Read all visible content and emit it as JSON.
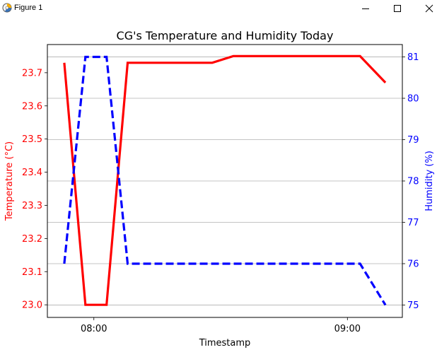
{
  "window": {
    "title": "Figure 1",
    "controls": {
      "minimize_icon": "minimize-icon",
      "maximize_icon": "maximize-icon",
      "close_icon": "close-icon"
    },
    "app_icon": "matplotlib-figure-icon"
  },
  "chart_data": {
    "type": "line",
    "title": "CG's Temperature and Humidity Today",
    "xlabel": "Timestamp",
    "x_ticks": [
      "08:00",
      "09:00"
    ],
    "x_tick_values": [
      "07:58",
      "08:58"
    ],
    "x": [
      "07:51",
      "07:56",
      "08:01",
      "08:06",
      "08:26",
      "08:31",
      "08:56",
      "09:01",
      "09:07"
    ],
    "xlim": [
      "07:47",
      "09:11"
    ],
    "grid": "y",
    "series": [
      {
        "name": "Temperature (°C)",
        "axis": "left",
        "color": "#ff0000",
        "line_style": "solid",
        "values": [
          23.73,
          23.0,
          23.0,
          23.73,
          23.73,
          23.75,
          23.75,
          23.75,
          23.67
        ]
      },
      {
        "name": "Humidity (%)",
        "axis": "right",
        "color": "#0000ff",
        "line_style": "dashed",
        "values": [
          76,
          81,
          81,
          76,
          76,
          76,
          76,
          76,
          75
        ]
      }
    ],
    "y_left": {
      "label": "Temperature (°C)",
      "color": "#ff0000",
      "ylim": [
        22.962,
        23.785
      ],
      "ticks": [
        "23.0",
        "23.1",
        "23.2",
        "23.3",
        "23.4",
        "23.5",
        "23.6",
        "23.7"
      ]
    },
    "y_right": {
      "label": "Humidity (%)",
      "color": "#0000ff",
      "ylim": [
        74.7,
        81.3
      ],
      "ticks": [
        "75",
        "76",
        "77",
        "78",
        "79",
        "80",
        "81"
      ]
    }
  }
}
